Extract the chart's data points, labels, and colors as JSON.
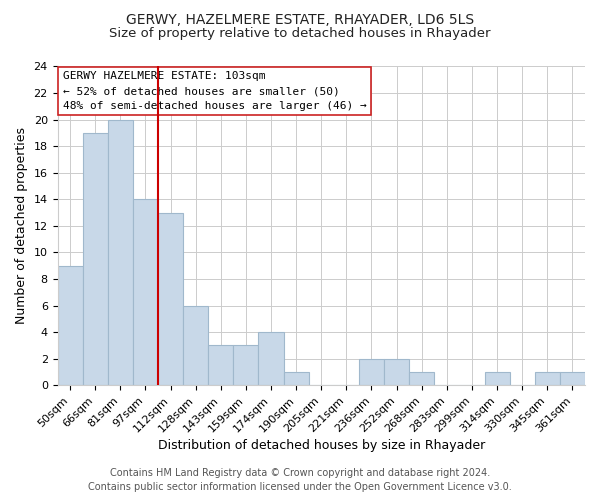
{
  "title": "GERWY, HAZELMERE ESTATE, RHAYADER, LD6 5LS",
  "subtitle": "Size of property relative to detached houses in Rhayader",
  "xlabel": "Distribution of detached houses by size in Rhayader",
  "ylabel": "Number of detached properties",
  "bar_labels": [
    "50sqm",
    "66sqm",
    "81sqm",
    "97sqm",
    "112sqm",
    "128sqm",
    "143sqm",
    "159sqm",
    "174sqm",
    "190sqm",
    "205sqm",
    "221sqm",
    "236sqm",
    "252sqm",
    "268sqm",
    "283sqm",
    "299sqm",
    "314sqm",
    "330sqm",
    "345sqm",
    "361sqm"
  ],
  "bar_values": [
    9,
    19,
    20,
    14,
    13,
    6,
    3,
    3,
    4,
    1,
    0,
    0,
    2,
    2,
    1,
    0,
    0,
    1,
    0,
    1,
    1
  ],
  "bar_color": "#c8d8e8",
  "bar_edgecolor": "#a0b8cc",
  "vline_color": "#cc0000",
  "vline_index": 3,
  "ylim": [
    0,
    24
  ],
  "yticks": [
    0,
    2,
    4,
    6,
    8,
    10,
    12,
    14,
    16,
    18,
    20,
    22,
    24
  ],
  "annotation_title": "GERWY HAZELMERE ESTATE: 103sqm",
  "annotation_line1": "← 52% of detached houses are smaller (50)",
  "annotation_line2": "48% of semi-detached houses are larger (46) →",
  "footer1": "Contains HM Land Registry data © Crown copyright and database right 2024.",
  "footer2": "Contains public sector information licensed under the Open Government Licence v3.0.",
  "title_fontsize": 10,
  "subtitle_fontsize": 9.5,
  "axis_label_fontsize": 9,
  "tick_fontsize": 8,
  "annotation_fontsize": 8,
  "footer_fontsize": 7
}
